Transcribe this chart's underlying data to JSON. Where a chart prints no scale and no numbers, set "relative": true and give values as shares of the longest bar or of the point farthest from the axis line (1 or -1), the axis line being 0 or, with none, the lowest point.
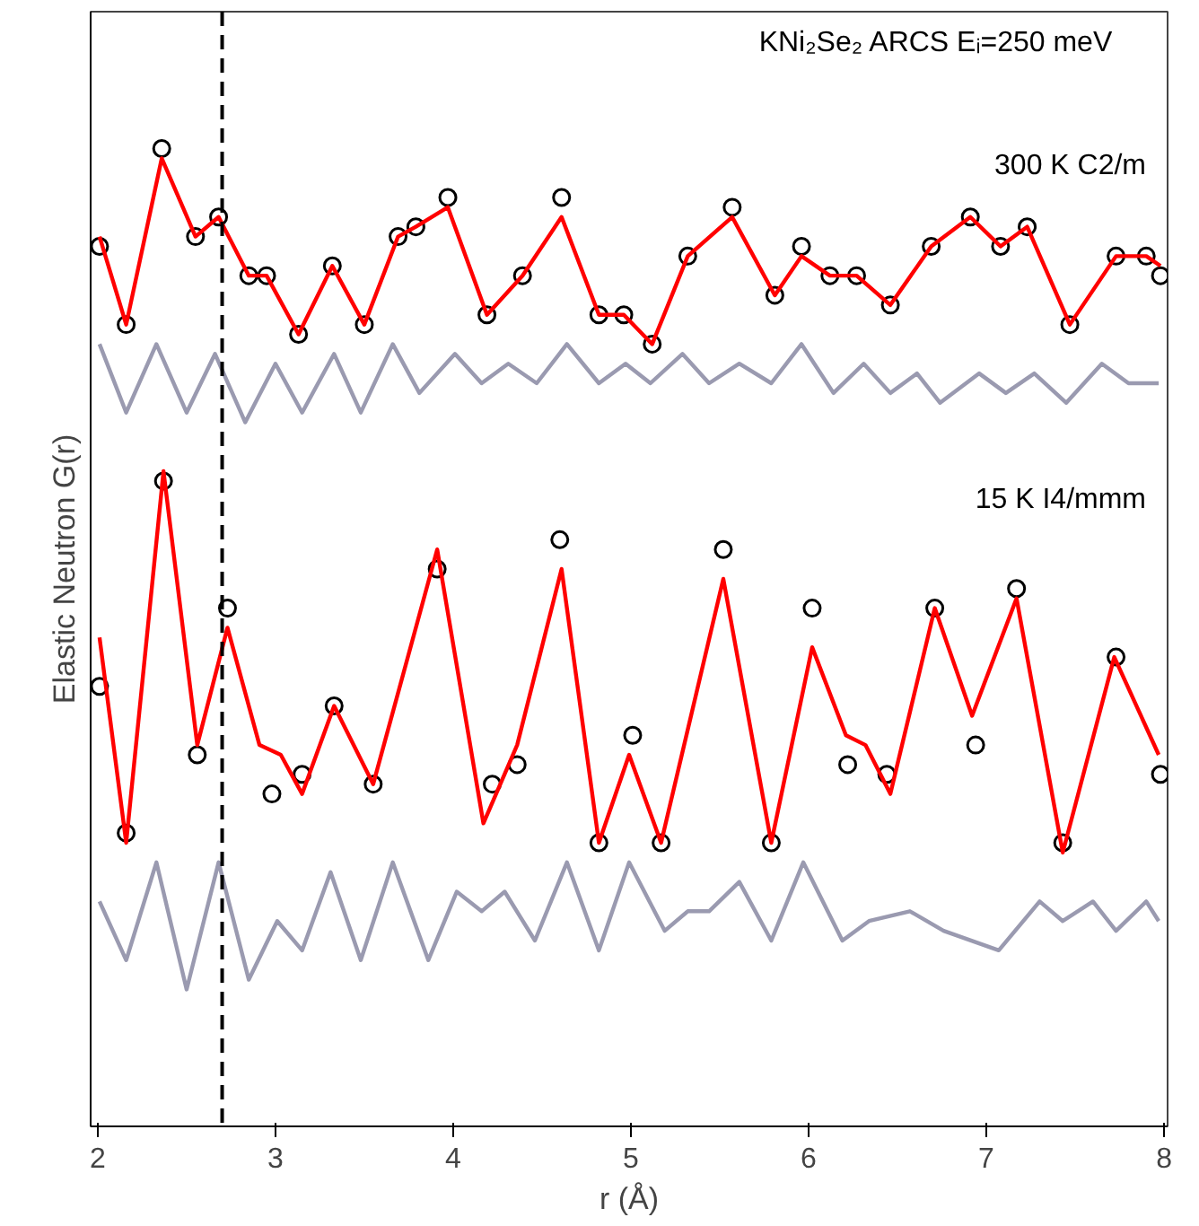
{
  "chart_data": {
    "type": "line",
    "relative": true,
    "title": "KNi₂Se₂ ARCS Eᵢ=250 meV",
    "xlabel": "r (Å)",
    "ylabel": "Elastic Neutron G(r)",
    "xlim": [
      1.96,
      8.02
    ],
    "xticks": [
      2,
      3,
      4,
      5,
      6,
      7,
      8
    ],
    "grid": false,
    "ref_lines": [
      {
        "axis": "x",
        "value": 2.7,
        "color": "#000000",
        "line_style": "dashed"
      }
    ],
    "annotations": [
      "300 K C2/m",
      "15 K I4/mmm"
    ],
    "series": [
      {
        "type": "scatter",
        "marker": "circle",
        "color": "#000000",
        "x": [
          2.01,
          2.16,
          2.36,
          2.55,
          2.68,
          2.85,
          2.95,
          3.13,
          3.32,
          3.5,
          3.69,
          3.79,
          3.97,
          4.19,
          4.39,
          4.61,
          4.82,
          4.96,
          5.12,
          5.32,
          5.57,
          5.81,
          5.96,
          6.12,
          6.27,
          6.46,
          6.69,
          6.91,
          7.08,
          7.23,
          7.47,
          7.73,
          7.9,
          7.98
        ],
        "values": [
          0.9,
          0.82,
          1.0,
          0.91,
          0.93,
          0.87,
          0.87,
          0.81,
          0.88,
          0.82,
          0.91,
          0.92,
          0.95,
          0.83,
          0.87,
          0.95,
          0.83,
          0.83,
          0.8,
          0.89,
          0.94,
          0.85,
          0.9,
          0.87,
          0.87,
          0.84,
          0.9,
          0.93,
          0.9,
          0.92,
          0.82,
          0.89,
          0.89,
          0.87
        ]
      },
      {
        "color": "#ff0000",
        "x": [
          2.01,
          2.16,
          2.36,
          2.55,
          2.68,
          2.85,
          2.95,
          3.13,
          3.32,
          3.5,
          3.69,
          3.79,
          3.97,
          4.19,
          4.39,
          4.61,
          4.82,
          4.96,
          5.12,
          5.32,
          5.57,
          5.81,
          5.96,
          6.12,
          6.27,
          6.46,
          6.69,
          6.91,
          7.08,
          7.23,
          7.47,
          7.73,
          7.9,
          7.98
        ],
        "values": [
          0.91,
          0.82,
          0.99,
          0.91,
          0.93,
          0.87,
          0.87,
          0.81,
          0.88,
          0.82,
          0.91,
          0.92,
          0.94,
          0.83,
          0.87,
          0.93,
          0.83,
          0.83,
          0.8,
          0.89,
          0.93,
          0.85,
          0.89,
          0.87,
          0.87,
          0.84,
          0.9,
          0.93,
          0.9,
          0.92,
          0.82,
          0.89,
          0.89,
          0.88
        ]
      },
      {
        "color": "#9a9ab0",
        "x": [
          2.01,
          2.16,
          2.33,
          2.5,
          2.66,
          2.83,
          3.0,
          3.15,
          3.33,
          3.48,
          3.66,
          3.81,
          4.01,
          4.16,
          4.31,
          4.47,
          4.64,
          4.82,
          4.97,
          5.11,
          5.29,
          5.44,
          5.61,
          5.79,
          5.96,
          6.14,
          6.31,
          6.46,
          6.61,
          6.74,
          6.96,
          7.11,
          7.27,
          7.45,
          7.65,
          7.8,
          7.97
        ],
        "values": [
          0.8,
          0.73,
          0.8,
          0.73,
          0.79,
          0.72,
          0.78,
          0.73,
          0.79,
          0.73,
          0.8,
          0.75,
          0.79,
          0.76,
          0.78,
          0.76,
          0.8,
          0.76,
          0.78,
          0.76,
          0.79,
          0.76,
          0.78,
          0.76,
          0.8,
          0.75,
          0.78,
          0.75,
          0.77,
          0.74,
          0.77,
          0.75,
          0.77,
          0.74,
          0.78,
          0.76,
          0.76
        ]
      },
      {
        "type": "scatter",
        "marker": "circle",
        "color": "#000000",
        "x": [
          2.01,
          2.16,
          2.37,
          2.56,
          2.73,
          2.98,
          3.15,
          3.33,
          3.55,
          3.91,
          4.22,
          4.36,
          4.6,
          4.82,
          5.01,
          5.17,
          5.52,
          5.79,
          6.02,
          6.22,
          6.44,
          6.71,
          6.94,
          7.17,
          7.43,
          7.73,
          7.98
        ],
        "values": [
          0.45,
          0.3,
          0.66,
          0.38,
          0.53,
          0.34,
          0.36,
          0.43,
          0.35,
          0.57,
          0.35,
          0.37,
          0.6,
          0.29,
          0.4,
          0.29,
          0.59,
          0.29,
          0.53,
          0.37,
          0.36,
          0.53,
          0.39,
          0.55,
          0.29,
          0.48,
          0.36
        ]
      },
      {
        "color": "#ff0000",
        "x": [
          2.01,
          2.16,
          2.37,
          2.56,
          2.73,
          2.91,
          3.03,
          3.15,
          3.33,
          3.55,
          3.91,
          4.17,
          4.36,
          4.61,
          4.82,
          4.99,
          5.17,
          5.52,
          5.79,
          6.02,
          6.21,
          6.32,
          6.46,
          6.71,
          6.92,
          7.17,
          7.43,
          7.72,
          7.97
        ],
        "values": [
          0.5,
          0.29,
          0.67,
          0.39,
          0.51,
          0.39,
          0.38,
          0.34,
          0.43,
          0.35,
          0.59,
          0.31,
          0.39,
          0.57,
          0.29,
          0.38,
          0.29,
          0.56,
          0.29,
          0.49,
          0.4,
          0.39,
          0.34,
          0.53,
          0.42,
          0.54,
          0.28,
          0.48,
          0.38
        ]
      },
      {
        "color": "#9a9ab0",
        "x": [
          2.01,
          2.16,
          2.33,
          2.5,
          2.68,
          2.85,
          3.01,
          3.15,
          3.31,
          3.48,
          3.66,
          3.86,
          4.02,
          4.16,
          4.29,
          4.46,
          4.64,
          4.82,
          4.99,
          5.19,
          5.32,
          5.44,
          5.61,
          5.79,
          5.97,
          6.19,
          6.34,
          6.57,
          6.76,
          7.07,
          7.3,
          7.43,
          7.6,
          7.73,
          7.9,
          7.97
        ],
        "values": [
          0.23,
          0.17,
          0.27,
          0.14,
          0.27,
          0.15,
          0.21,
          0.18,
          0.26,
          0.17,
          0.27,
          0.17,
          0.24,
          0.22,
          0.24,
          0.19,
          0.27,
          0.18,
          0.27,
          0.2,
          0.22,
          0.22,
          0.25,
          0.19,
          0.27,
          0.19,
          0.21,
          0.22,
          0.2,
          0.18,
          0.23,
          0.21,
          0.23,
          0.2,
          0.23,
          0.21
        ]
      }
    ]
  }
}
